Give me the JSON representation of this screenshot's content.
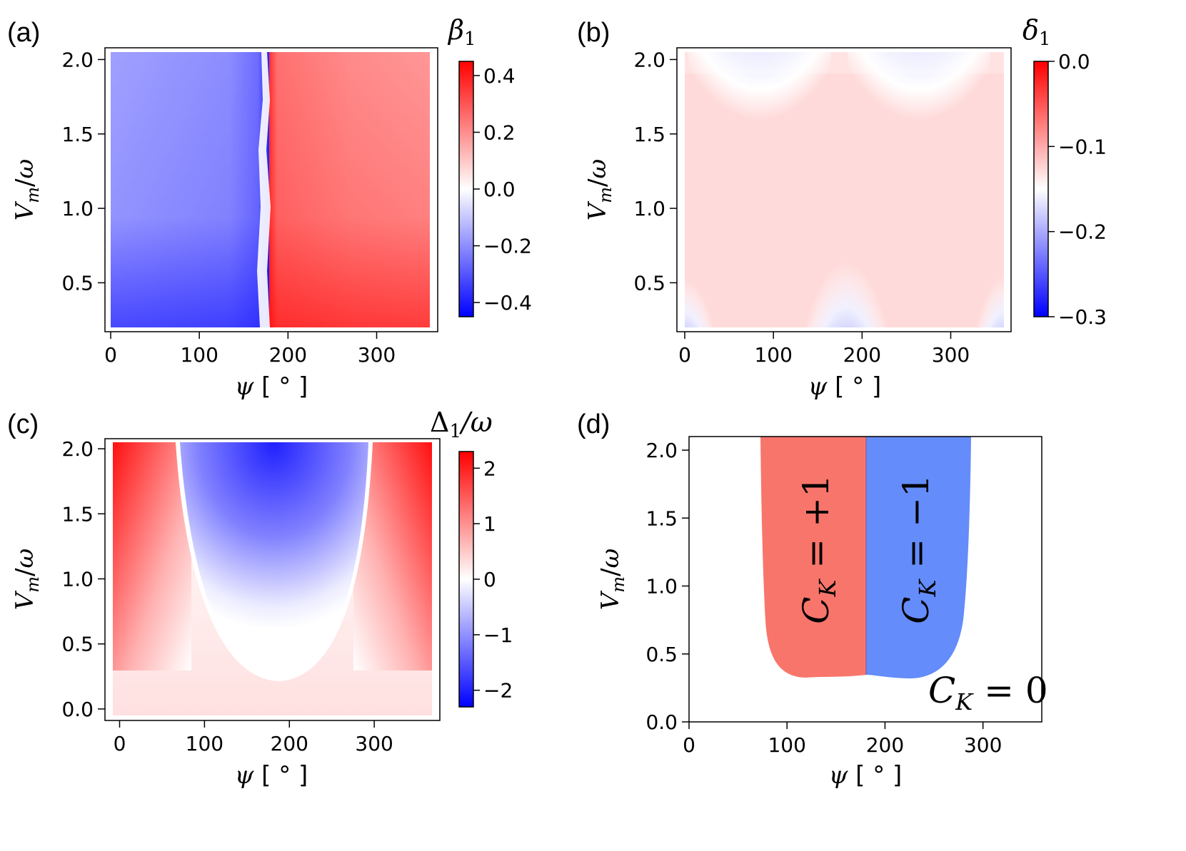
{
  "panels": [
    {
      "id": "a",
      "label": "(a)",
      "chart_data": {
        "type": "heatmap",
        "xlabel": "ψ [ ° ]",
        "ylabel": "V_m/ω",
        "xlim": [
          0,
          360
        ],
        "ylim": [
          0.2,
          2.05
        ],
        "xticks": [
          0,
          100,
          200,
          300
        ],
        "yticks": [
          0.5,
          1.0,
          1.5,
          2.0
        ],
        "colorbar": {
          "label": "β_1",
          "range": [
            -0.45,
            0.45
          ],
          "ticks": [
            -0.4,
            -0.2,
            0.0,
            0.2,
            0.4
          ],
          "colormap": "bwr"
        },
        "description_values": {
          "negative_region_psi": [
            0,
            178
          ],
          "positive_region_psi": [
            178,
            360
          ],
          "min_value": -0.45,
          "max_value": 0.45
        }
      }
    },
    {
      "id": "b",
      "label": "(b)",
      "chart_data": {
        "type": "heatmap",
        "xlabel": "ψ [ ° ]",
        "ylabel": "V_m/ω",
        "xlim": [
          0,
          360
        ],
        "ylim": [
          0.2,
          2.05
        ],
        "xticks": [
          0,
          100,
          200,
          300
        ],
        "yticks": [
          0.5,
          1.0,
          1.5,
          2.0
        ],
        "colorbar": {
          "label": "δ_1",
          "range": [
            -0.3,
            0.0
          ],
          "ticks": [
            0.0,
            -0.1,
            -0.2,
            -0.3
          ],
          "colormap": "bwr"
        },
        "description_values": {
          "blue_lobes_center_psi": [
            85,
            265
          ],
          "blue_spikes_low_psi": [
            0,
            178,
            360
          ],
          "min_value": -0.3,
          "max_value": -0.07
        }
      }
    },
    {
      "id": "c",
      "label": "(c)",
      "chart_data": {
        "type": "heatmap",
        "xlabel": "ψ [ ° ]",
        "ylabel": "V_m/ω",
        "xlim": [
          -8,
          368
        ],
        "ylim": [
          -0.05,
          2.05
        ],
        "xticks": [
          0,
          100,
          200,
          300
        ],
        "yticks": [
          0.0,
          0.5,
          1.0,
          1.5,
          2.0
        ],
        "colorbar": {
          "label": "Δ_1/ω",
          "range": [
            -2.3,
            2.3
          ],
          "ticks": [
            2,
            1,
            0,
            -1,
            -2
          ],
          "colormap": "bwr"
        },
        "description_values": {
          "negative_region_center_psi": 180,
          "zero_contour_min_v": 0.25,
          "min_value": -2.3,
          "max_value": 2.3
        }
      }
    },
    {
      "id": "d",
      "label": "(d)",
      "chart_data": {
        "type": "area",
        "xlabel": "ψ [ ° ]",
        "ylabel": "V_m/ω",
        "xlim": [
          0,
          360
        ],
        "ylim": [
          0.0,
          2.1
        ],
        "xticks": [
          0,
          100,
          200,
          300
        ],
        "yticks": [
          0.0,
          0.5,
          1.0,
          1.5,
          2.0
        ],
        "regions": [
          {
            "label": "C_K = +1",
            "color": "#f8756b",
            "psi_range": [
              75,
              180
            ],
            "v_min": 0.31
          },
          {
            "label": "C_K = −1",
            "color": "#648cfa",
            "psi_range": [
              180,
              285
            ],
            "v_min": 0.3
          }
        ],
        "background_label": "C_K = 0"
      }
    }
  ],
  "colors": {
    "blue_extreme": "#0000ff",
    "white_mid": "#ffffff",
    "red_extreme": "#ff0000",
    "region_plus": "#f8756b",
    "region_minus": "#648cfa"
  }
}
